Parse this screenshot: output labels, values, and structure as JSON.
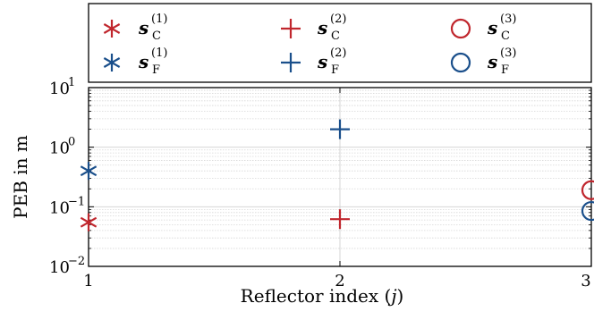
{
  "chart_data": {
    "type": "scatter",
    "xlabel": "Reflector index",
    "xlabel_symbol": "j",
    "ylabel": "PEB in m",
    "y_scale": "log",
    "ylim_exponents": [
      -2,
      1
    ],
    "xlim": [
      1,
      3
    ],
    "x_ticks": [
      "1",
      "2",
      "3"
    ],
    "y_tick_base": "10",
    "y_tick_exponents": [
      "1",
      "0",
      "−1",
      "−2"
    ],
    "grid": true,
    "legend_position": "top (outside plot area)",
    "colors": {
      "red": "#c0262d",
      "blue": "#1a4f8b"
    },
    "series": [
      {
        "name_base": "s",
        "sub": "C",
        "sup": "(1)",
        "marker": "asterisk",
        "color": "#c0262d",
        "points": [
          {
            "x": 1,
            "y": 0.055
          }
        ]
      },
      {
        "name_base": "s",
        "sub": "F",
        "sup": "(1)",
        "marker": "asterisk",
        "color": "#1a4f8b",
        "points": [
          {
            "x": 1,
            "y": 0.4
          }
        ]
      },
      {
        "name_base": "s",
        "sub": "C",
        "sup": "(2)",
        "marker": "plus",
        "color": "#c0262d",
        "points": [
          {
            "x": 2,
            "y": 0.062
          }
        ]
      },
      {
        "name_base": "s",
        "sub": "F",
        "sup": "(2)",
        "marker": "plus",
        "color": "#1a4f8b",
        "points": [
          {
            "x": 2,
            "y": 2.0
          }
        ]
      },
      {
        "name_base": "s",
        "sub": "C",
        "sup": "(3)",
        "marker": "circle",
        "color": "#c0262d",
        "points": [
          {
            "x": 3,
            "y": 0.19
          }
        ]
      },
      {
        "name_base": "s",
        "sub": "F",
        "sup": "(3)",
        "marker": "circle",
        "color": "#1a4f8b",
        "points": [
          {
            "x": 3,
            "y": 0.085
          }
        ]
      }
    ]
  }
}
